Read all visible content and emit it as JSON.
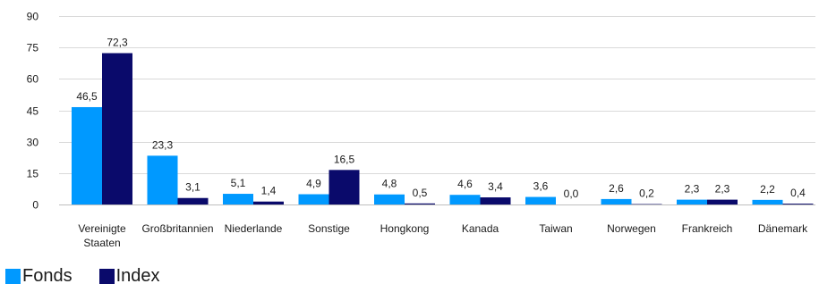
{
  "chart_data": {
    "type": "bar",
    "title": "",
    "xlabel": "",
    "ylabel": "",
    "ylim": [
      0,
      90
    ],
    "yticks": [
      0,
      15,
      30,
      45,
      60,
      75,
      90
    ],
    "grid": true,
    "legend_position": "bottom-left",
    "categories": [
      [
        "Vereinigte",
        "Staaten"
      ],
      [
        "Großbritannien"
      ],
      [
        "Niederlande"
      ],
      [
        "Sonstige"
      ],
      [
        "Hongkong"
      ],
      [
        "Kanada"
      ],
      [
        "Taiwan"
      ],
      [
        "Norwegen"
      ],
      [
        "Frankreich"
      ],
      [
        "Dänemark"
      ]
    ],
    "series": [
      {
        "name": "Fonds",
        "color": "#0099ff",
        "values": [
          46.5,
          23.3,
          5.1,
          4.9,
          4.8,
          4.6,
          3.6,
          2.6,
          2.3,
          2.2
        ],
        "labels": [
          "46,5",
          "23,3",
          "5,1",
          "4,9",
          "4,8",
          "4,6",
          "3,6",
          "2,6",
          "2,3",
          "2,2"
        ]
      },
      {
        "name": "Index",
        "color": "#0a0a6b",
        "values": [
          72.3,
          3.1,
          1.4,
          16.5,
          0.5,
          3.4,
          0.0,
          0.2,
          2.3,
          0.4
        ],
        "labels": [
          "72,3",
          "3,1",
          "1,4",
          "16,5",
          "0,5",
          "3,4",
          "0,0",
          "0,2",
          "2,3",
          "0,4"
        ]
      }
    ]
  }
}
